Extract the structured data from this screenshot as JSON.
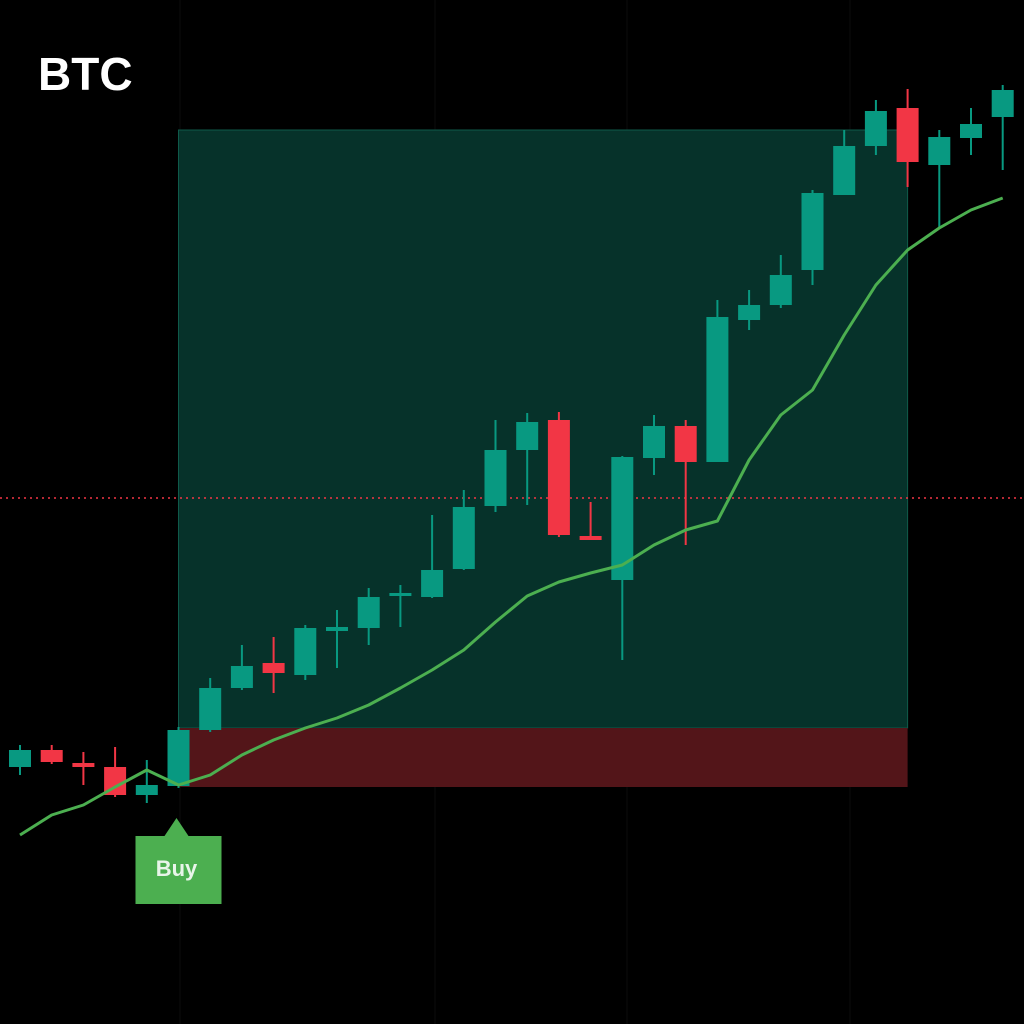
{
  "chart_data": {
    "type": "candlestick",
    "title": "BTC",
    "signal_label": "Buy",
    "open": [
      257,
      274,
      261,
      257,
      229,
      238,
      294,
      336,
      361,
      349,
      393,
      396,
      428,
      427,
      455,
      518,
      574,
      604,
      488,
      444,
      566,
      598,
      562,
      704,
      719,
      754,
      829,
      878,
      916,
      859,
      886,
      907
    ],
    "close": [
      274,
      262,
      257,
      229,
      239,
      294,
      336,
      358,
      351,
      396,
      397,
      427,
      431,
      454,
      517,
      574,
      602,
      489,
      484,
      567,
      598,
      562,
      707,
      719,
      749,
      831,
      878,
      913,
      862,
      887,
      900,
      934
    ],
    "high": [
      279,
      279,
      272,
      277,
      264,
      297,
      346,
      379,
      387,
      399,
      414,
      436,
      439,
      509,
      534,
      604,
      611,
      612,
      522,
      568,
      609,
      604,
      724,
      734,
      769,
      834,
      894,
      924,
      935,
      894,
      916,
      939
    ],
    "low": [
      249,
      260,
      239,
      227,
      221,
      236,
      292,
      334,
      331,
      344,
      356,
      379,
      397,
      426,
      454,
      512,
      519,
      487,
      484,
      364,
      549,
      479,
      562,
      694,
      716,
      739,
      829,
      869,
      837,
      796,
      869,
      854
    ],
    "moving_average": [
      189,
      209,
      219,
      237,
      254,
      239,
      249,
      269,
      284,
      296,
      306,
      319,
      336,
      354,
      374,
      402,
      428,
      442,
      451,
      459,
      479,
      494,
      503,
      564,
      609,
      634,
      689,
      739,
      774,
      796,
      814,
      826
    ],
    "take_profit": 894,
    "entry": 296,
    "stop_loss": 237,
    "price_line": 526,
    "up_color": "#089981",
    "down_color": "#f23645",
    "ma_color": "#4caf50",
    "ylim": [
      0,
      1024
    ]
  }
}
